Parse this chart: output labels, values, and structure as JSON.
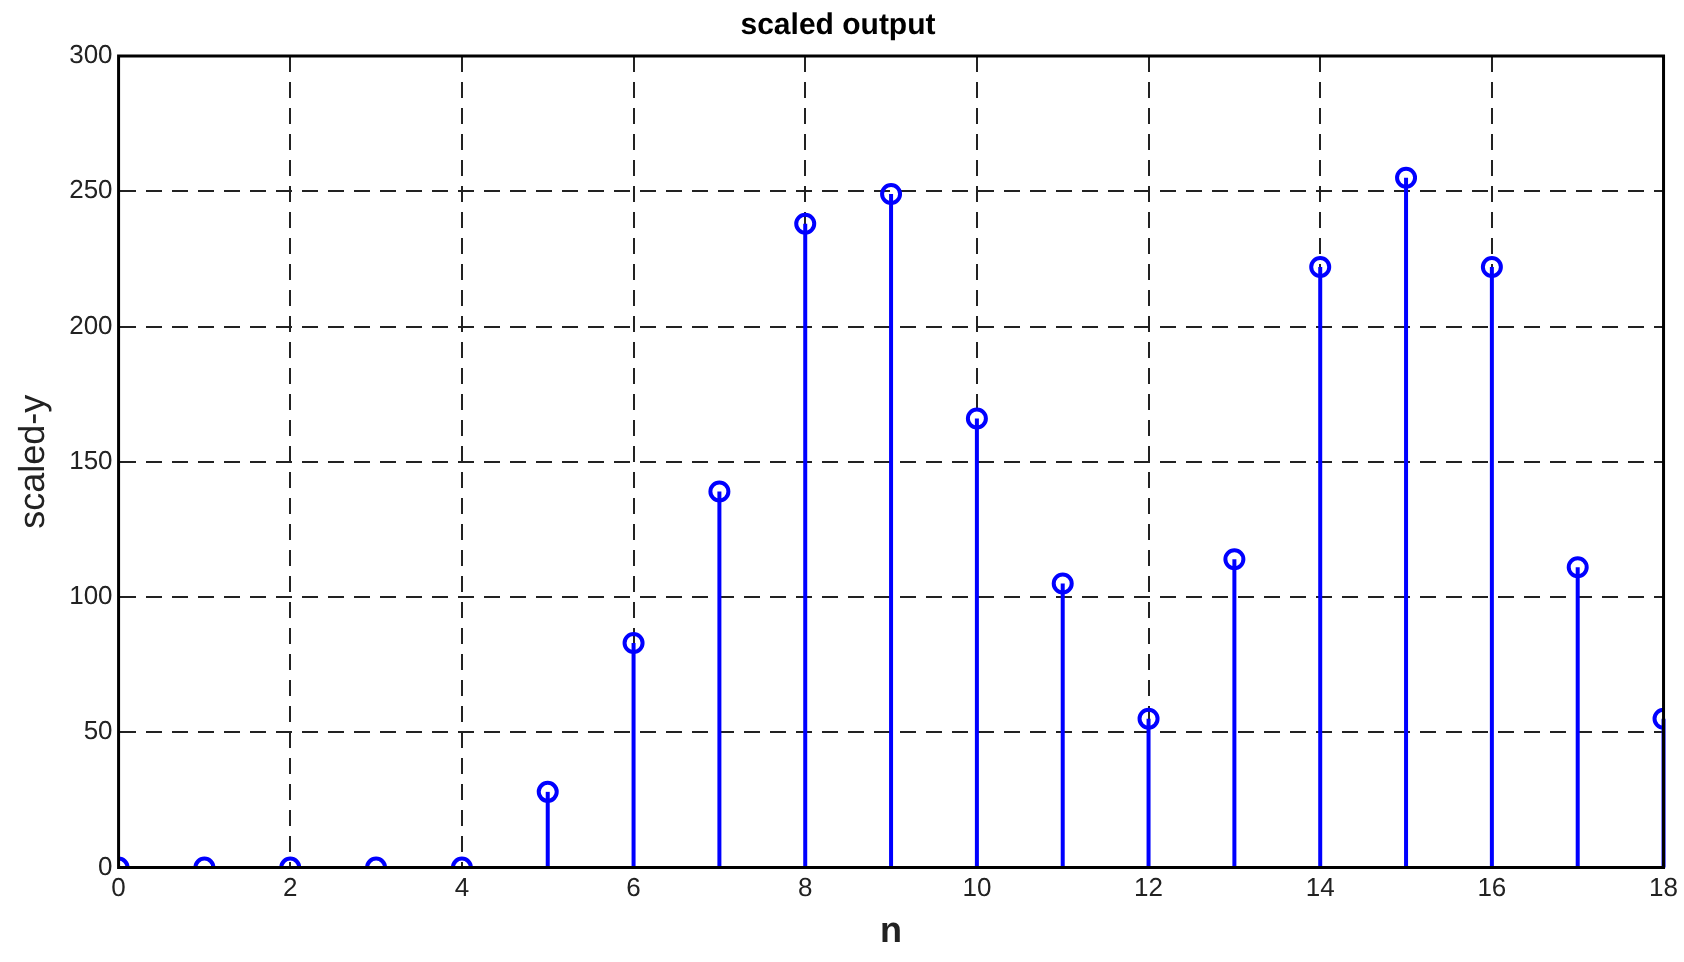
{
  "chart_data": {
    "type": "lollipop",
    "title": "scaled output",
    "xlabel": "n",
    "ylabel": "scaled-y",
    "x": [
      0,
      1,
      2,
      3,
      4,
      5,
      6,
      7,
      8,
      9,
      10,
      11,
      12,
      13,
      14,
      15,
      16,
      17,
      18
    ],
    "values": [
      0,
      0,
      0,
      0,
      0,
      28,
      83,
      139,
      238,
      249,
      166,
      105,
      55,
      114,
      222,
      255,
      222,
      111,
      55
    ],
    "color": "#0000ff",
    "xlim": [
      0,
      18
    ],
    "xticks": [
      0,
      2,
      4,
      6,
      8,
      10,
      12,
      14,
      16,
      18
    ],
    "ylim": [
      0,
      300
    ],
    "yticks": [
      0,
      50,
      100,
      150,
      200,
      250,
      300
    ],
    "grid": true,
    "marker": "circle",
    "legend": false
  }
}
